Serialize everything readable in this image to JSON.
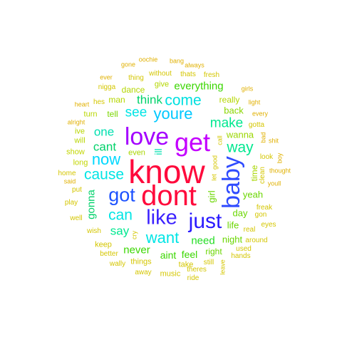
{
  "words": [
    {
      "text": "know",
      "color": "#ff0a3c",
      "vertical": false
    },
    {
      "text": "dont",
      "color": "#ff0a3c",
      "vertical": false
    },
    {
      "text": "get",
      "color": "#c400ff",
      "vertical": false
    },
    {
      "text": "love",
      "color": "#a400ff",
      "vertical": false
    },
    {
      "text": "baby",
      "color": "#2f4bff",
      "vertical": true
    },
    {
      "text": "just",
      "color": "#2a1aff",
      "vertical": false
    },
    {
      "text": "like",
      "color": "#3a20ff",
      "vertical": false
    },
    {
      "text": "got",
      "color": "#1d52ff",
      "vertical": false
    },
    {
      "text": "youre",
      "color": "#00c8ff",
      "vertical": false
    },
    {
      "text": "come",
      "color": "#00e0e0",
      "vertical": false
    },
    {
      "text": "now",
      "color": "#00d8ff",
      "vertical": false
    },
    {
      "text": "cause",
      "color": "#00e5e5",
      "vertical": false
    },
    {
      "text": "can",
      "color": "#00e5e5",
      "vertical": false
    },
    {
      "text": "want",
      "color": "#00e5e5",
      "vertical": false
    },
    {
      "text": "way",
      "color": "#00e890",
      "vertical": false
    },
    {
      "text": "make",
      "color": "#00e890",
      "vertical": false
    },
    {
      "text": "see",
      "color": "#00e5e5",
      "vertical": false
    },
    {
      "text": "one",
      "color": "#00e0b0",
      "vertical": false
    },
    {
      "text": "cant",
      "color": "#00d26a",
      "vertical": false
    },
    {
      "text": "think",
      "color": "#00d26a",
      "vertical": false
    },
    {
      "text": "say",
      "color": "#00e890",
      "vertical": false
    },
    {
      "text": "gonna",
      "color": "#00d26a",
      "vertical": true
    },
    {
      "text": "need",
      "color": "#22dd22",
      "vertical": false
    },
    {
      "text": "never",
      "color": "#3ad600",
      "vertical": false
    },
    {
      "text": "aint",
      "color": "#3ad600",
      "vertical": false
    },
    {
      "text": "feel",
      "color": "#3ad600",
      "vertical": false
    },
    {
      "text": "everything",
      "color": "#3ad600",
      "vertical": false
    },
    {
      "text": "yeah",
      "color": "#6ad600",
      "vertical": false
    },
    {
      "text": "day",
      "color": "#6ad600",
      "vertical": false
    },
    {
      "text": "night",
      "color": "#6ad600",
      "vertical": false
    },
    {
      "text": "right",
      "color": "#6ad600",
      "vertical": false
    },
    {
      "text": "life",
      "color": "#6ad600",
      "vertical": false
    },
    {
      "text": "girl",
      "color": "#6ad600",
      "vertical": true
    },
    {
      "text": "tell",
      "color": "#7ad600",
      "vertical": false
    },
    {
      "text": "back",
      "color": "#8ad600",
      "vertical": false
    },
    {
      "text": "wanna",
      "color": "#9ad600",
      "vertical": false
    },
    {
      "text": "even",
      "color": "#a8d600",
      "vertical": false
    },
    {
      "text": "ill",
      "color": "#00e0b0",
      "vertical": true
    },
    {
      "text": "time",
      "color": "#a8d600",
      "vertical": true
    },
    {
      "text": "really",
      "color": "#b4d600",
      "vertical": false
    },
    {
      "text": "man",
      "color": "#b4d600",
      "vertical": false
    },
    {
      "text": "dance",
      "color": "#b4d600",
      "vertical": false
    },
    {
      "text": "give",
      "color": "#b4d600",
      "vertical": false
    },
    {
      "text": "turn",
      "color": "#b8d600",
      "vertical": false
    },
    {
      "text": "will",
      "color": "#b8d600",
      "vertical": false
    },
    {
      "text": "ive",
      "color": "#b8d600",
      "vertical": false
    },
    {
      "text": "show",
      "color": "#c2d600",
      "vertical": false
    },
    {
      "text": "long",
      "color": "#c2d600",
      "vertical": false
    },
    {
      "text": "home",
      "color": "#d4c600",
      "vertical": false
    },
    {
      "text": "put",
      "color": "#d4c600",
      "vertical": false
    },
    {
      "text": "play",
      "color": "#d4c600",
      "vertical": false
    },
    {
      "text": "well",
      "color": "#d4c600",
      "vertical": false
    },
    {
      "text": "wish",
      "color": "#d4c600",
      "vertical": false
    },
    {
      "text": "keep",
      "color": "#d4c600",
      "vertical": false
    },
    {
      "text": "better",
      "color": "#d4c600",
      "vertical": false
    },
    {
      "text": "wally",
      "color": "#d4c600",
      "vertical": false
    },
    {
      "text": "things",
      "color": "#d4c600",
      "vertical": false
    },
    {
      "text": "away",
      "color": "#d4c600",
      "vertical": false
    },
    {
      "text": "music",
      "color": "#d4c600",
      "vertical": false
    },
    {
      "text": "take",
      "color": "#d4c600",
      "vertical": false
    },
    {
      "text": "theres",
      "color": "#d4c600",
      "vertical": false
    },
    {
      "text": "ride",
      "color": "#d4c600",
      "vertical": false
    },
    {
      "text": "still",
      "color": "#d4c600",
      "vertical": false
    },
    {
      "text": "leave",
      "color": "#d4c600",
      "vertical": true
    },
    {
      "text": "hands",
      "color": "#d4c600",
      "vertical": false
    },
    {
      "text": "used",
      "color": "#d4c600",
      "vertical": false
    },
    {
      "text": "around",
      "color": "#d4c600",
      "vertical": false
    },
    {
      "text": "real",
      "color": "#d4c600",
      "vertical": false
    },
    {
      "text": "eyes",
      "color": "#d4c600",
      "vertical": false
    },
    {
      "text": "gon",
      "color": "#d4c600",
      "vertical": false
    },
    {
      "text": "freak",
      "color": "#d4c600",
      "vertical": false
    },
    {
      "text": "cry",
      "color": "#d4c600",
      "vertical": true
    },
    {
      "text": "said",
      "color": "#e0b000",
      "vertical": false
    },
    {
      "text": "alright",
      "color": "#e0b000",
      "vertical": false
    },
    {
      "text": "heart",
      "color": "#e0b000",
      "vertical": false
    },
    {
      "text": "hes",
      "color": "#d4c600",
      "vertical": false
    },
    {
      "text": "ever",
      "color": "#e0b000",
      "vertical": false
    },
    {
      "text": "nigga",
      "color": "#d4c600",
      "vertical": false
    },
    {
      "text": "thing",
      "color": "#d4c600",
      "vertical": false
    },
    {
      "text": "without",
      "color": "#d4c600",
      "vertical": false
    },
    {
      "text": "thats",
      "color": "#d4c600",
      "vertical": false
    },
    {
      "text": "fresh",
      "color": "#d4c600",
      "vertical": false
    },
    {
      "text": "gone",
      "color": "#e0b000",
      "vertical": false
    },
    {
      "text": "oochie",
      "color": "#e0b000",
      "vertical": false
    },
    {
      "text": "bang",
      "color": "#e0b000",
      "vertical": false
    },
    {
      "text": "always",
      "color": "#e0b000",
      "vertical": false
    },
    {
      "text": "girls",
      "color": "#e0b000",
      "vertical": false
    },
    {
      "text": "light",
      "color": "#e0b000",
      "vertical": false
    },
    {
      "text": "every",
      "color": "#e0b000",
      "vertical": false
    },
    {
      "text": "gotta",
      "color": "#d4c600",
      "vertical": false
    },
    {
      "text": "bad",
      "color": "#e0b000",
      "vertical": true
    },
    {
      "text": "shit",
      "color": "#e0b000",
      "vertical": false
    },
    {
      "text": "boy",
      "color": "#e0b000",
      "vertical": true
    },
    {
      "text": "look",
      "color": "#d4c600",
      "vertical": false
    },
    {
      "text": "thought",
      "color": "#e0b000",
      "vertical": false
    },
    {
      "text": "youll",
      "color": "#e0b000",
      "vertical": false
    },
    {
      "text": "clean",
      "color": "#d4c600",
      "vertical": true
    },
    {
      "text": "call",
      "color": "#d4c600",
      "vertical": true
    },
    {
      "text": "let",
      "color": "#d4c600",
      "vertical": true
    },
    {
      "text": "good",
      "color": "#d4c600",
      "vertical": true
    }
  ]
}
